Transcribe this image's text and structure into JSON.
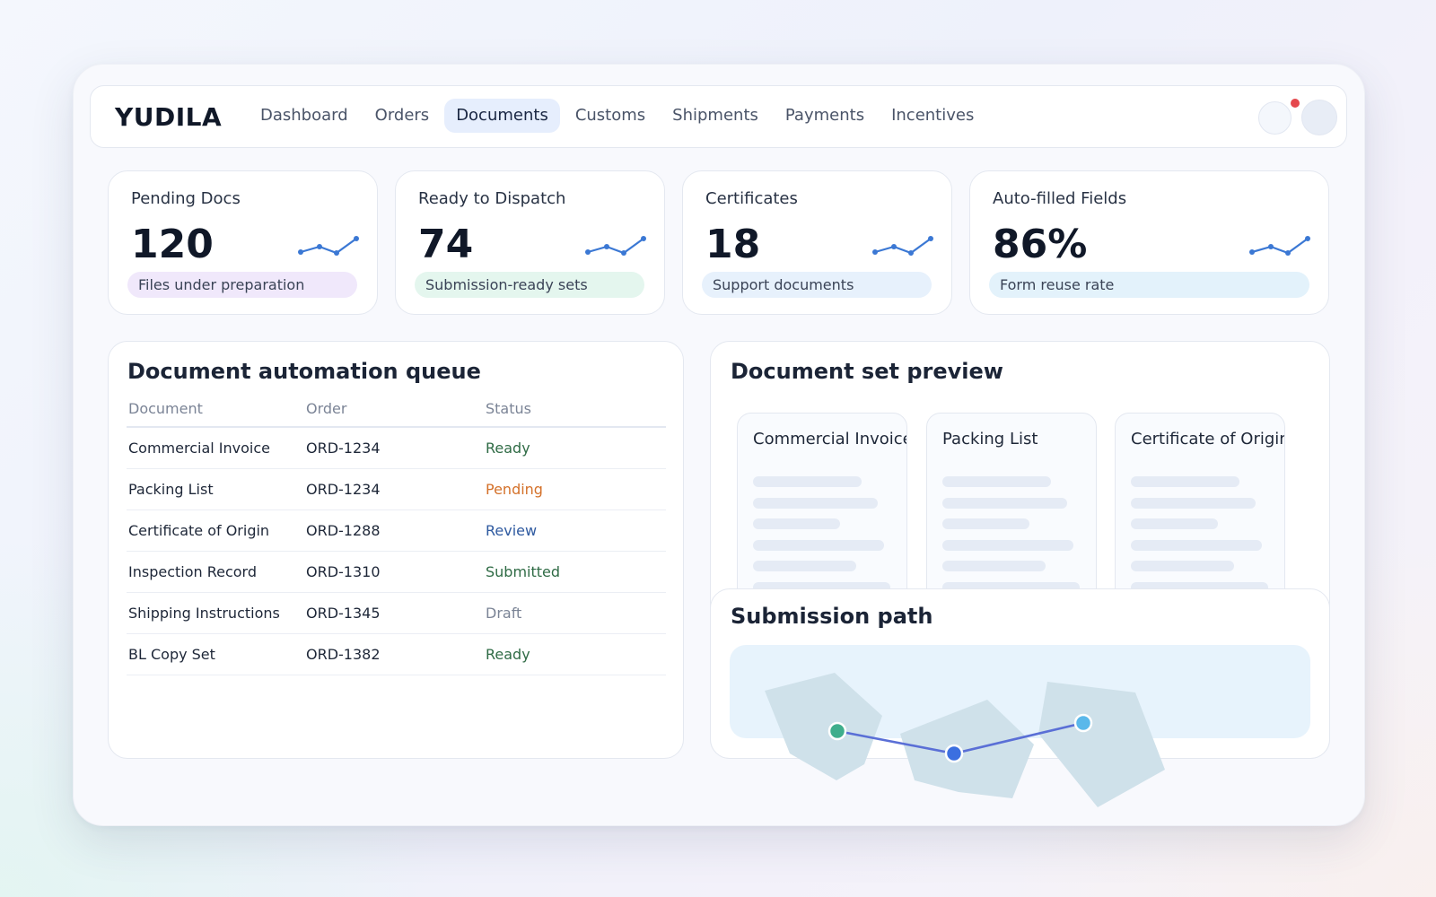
{
  "brand": "YUDILA",
  "nav": [
    {
      "label": "Dashboard"
    },
    {
      "label": "Orders"
    },
    {
      "label": "Documents"
    },
    {
      "label": "Customs"
    },
    {
      "label": "Shipments"
    },
    {
      "label": "Payments"
    },
    {
      "label": "Incentives"
    }
  ],
  "active_nav": "Documents",
  "stats": [
    {
      "title": "Pending Docs",
      "value": "120",
      "caption": "Files under preparation",
      "pill_color": "#f0e8fb"
    },
    {
      "title": "Ready to Dispatch",
      "value": "74",
      "caption": "Submission-ready sets",
      "pill_color": "#e4f6ee"
    },
    {
      "title": "Certificates",
      "value": "18",
      "caption": "Support documents",
      "pill_color": "#e7f1fc"
    },
    {
      "title": "Auto-filled Fields",
      "value": "86%",
      "caption": "Form reuse rate",
      "pill_color": "#e3f2fb"
    }
  ],
  "queue": {
    "title": "Document automation queue",
    "columns": [
      "Document",
      "Order",
      "Status"
    ],
    "rows": [
      {
        "document": "Commercial Invoice",
        "order": "ORD-1234",
        "status": "Ready"
      },
      {
        "document": "Packing List",
        "order": "ORD-1234",
        "status": "Pending"
      },
      {
        "document": "Certificate of Origin",
        "order": "ORD-1288",
        "status": "Review"
      },
      {
        "document": "Inspection Record",
        "order": "ORD-1310",
        "status": "Submitted"
      },
      {
        "document": "Shipping Instructions",
        "order": "ORD-1345",
        "status": "Draft"
      },
      {
        "document": "BL Copy Set",
        "order": "ORD-1382",
        "status": "Ready"
      }
    ],
    "status_colors": {
      "Ready": "#2f6b45",
      "Pending": "#d4712a",
      "Review": "#2f5aa0",
      "Submitted": "#2f6b45",
      "Draft": "#7b8496"
    }
  },
  "preview": {
    "title": "Document set preview",
    "cards": [
      "Commercial Invoice",
      "Packing List",
      "Certificate of Origin"
    ]
  },
  "submission": {
    "title": "Submission path"
  },
  "colors": {
    "accent": "#3b6fd8",
    "route_line": "#5a6fd6",
    "node_start": "#3fae8c",
    "node_mid": "#3b6fe0",
    "node_end": "#5ab8ea",
    "region_fill": "#cfe1ea"
  },
  "icons": {
    "notification": "bell-icon",
    "profile": "avatar",
    "trend": "sparkline-icon"
  }
}
